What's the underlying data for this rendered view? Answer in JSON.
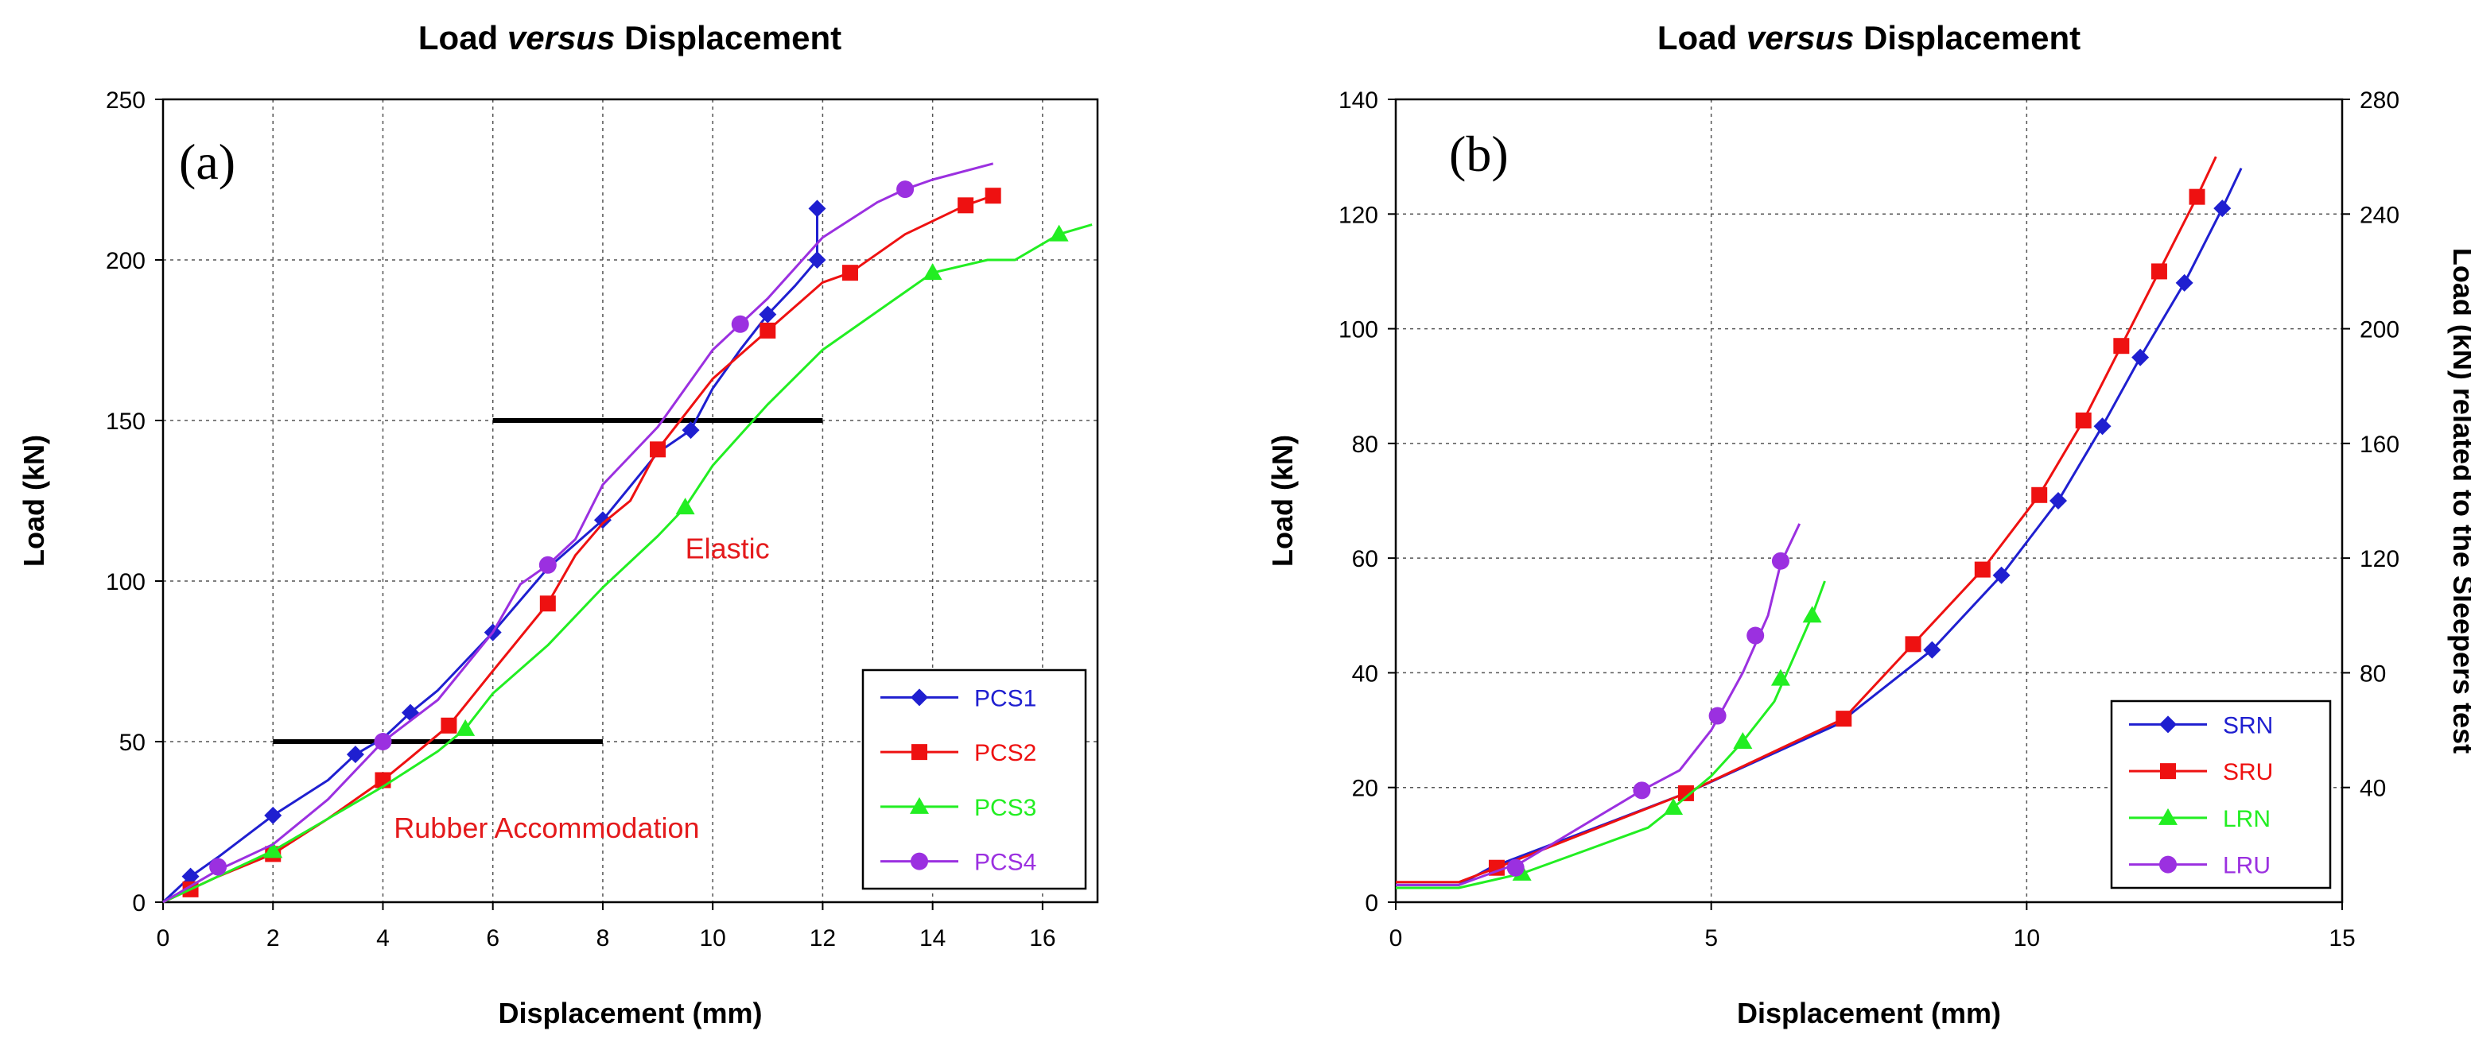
{
  "chart_data": [
    {
      "type": "line",
      "panel_label": "(a)",
      "title_parts": [
        "Load ",
        "versus",
        " Displacement"
      ],
      "xlabel": "Displacement (mm)",
      "ylabel": "Load (kN)",
      "xlim": [
        0,
        17
      ],
      "ylim": [
        0,
        250
      ],
      "xticks": [
        0,
        2,
        4,
        6,
        8,
        10,
        12,
        14,
        16
      ],
      "yticks": [
        0,
        50,
        100,
        150,
        200,
        250
      ],
      "grid": true,
      "legend_position": "bottom-right",
      "annotations": [
        {
          "text": "Elastic",
          "x": 9.5,
          "y": 107,
          "color": "#e41a1c"
        },
        {
          "text": "Rubber Accommodation",
          "x": 4.2,
          "y": 20,
          "color": "#e41a1c"
        }
      ],
      "reference_lines": [
        {
          "x": [
            2,
            8
          ],
          "y": [
            50,
            50
          ]
        },
        {
          "x": [
            6,
            12
          ],
          "y": [
            150,
            150
          ]
        }
      ],
      "series": [
        {
          "name": "PCS1",
          "color": "#1f1fd0",
          "marker": "diamond",
          "line": [
            [
              0,
              0
            ],
            [
              0.5,
              8
            ],
            [
              1,
              14
            ],
            [
              2,
              27
            ],
            [
              3,
              38
            ],
            [
              3.5,
              46
            ],
            [
              4,
              51
            ],
            [
              4.5,
              59
            ],
            [
              5,
              66
            ],
            [
              6,
              84
            ],
            [
              7,
              104
            ],
            [
              8,
              119
            ],
            [
              9,
              140
            ],
            [
              9.6,
              147
            ],
            [
              10,
              160
            ],
            [
              10.5,
              172
            ],
            [
              11,
              183
            ],
            [
              11.5,
              192
            ],
            [
              11.9,
              200
            ],
            [
              11.9,
              216
            ]
          ],
          "markers": [
            [
              0.5,
              8
            ],
            [
              2,
              27
            ],
            [
              3.5,
              46
            ],
            [
              4.5,
              59
            ],
            [
              6,
              84
            ],
            [
              8,
              119
            ],
            [
              9.6,
              147
            ],
            [
              11,
              183
            ],
            [
              11.9,
              200
            ],
            [
              11.9,
              216
            ]
          ]
        },
        {
          "name": "PCS2",
          "color": "#ee1111",
          "marker": "square",
          "line": [
            [
              0,
              0
            ],
            [
              0.5,
              4
            ],
            [
              1,
              8
            ],
            [
              2,
              15
            ],
            [
              3,
              26
            ],
            [
              4,
              38
            ],
            [
              4.5,
              45
            ],
            [
              5.2,
              55
            ],
            [
              6,
              72
            ],
            [
              7,
              93
            ],
            [
              7.5,
              108
            ],
            [
              8,
              118
            ],
            [
              8.5,
              125
            ],
            [
              9,
              141
            ],
            [
              10,
              163
            ],
            [
              11,
              178
            ],
            [
              12,
              193
            ],
            [
              12.5,
              196
            ],
            [
              13.5,
              208
            ],
            [
              14.6,
              217
            ],
            [
              15.1,
              220
            ]
          ],
          "markers": [
            [
              0.5,
              4
            ],
            [
              2,
              15
            ],
            [
              4,
              38
            ],
            [
              5.2,
              55
            ],
            [
              7,
              93
            ],
            [
              9,
              141
            ],
            [
              11,
              178
            ],
            [
              12.5,
              196
            ],
            [
              14.6,
              217
            ],
            [
              15.1,
              220
            ]
          ]
        },
        {
          "name": "PCS3",
          "color": "#22ee22",
          "marker": "triangle",
          "line": [
            [
              0,
              0
            ],
            [
              1,
              8
            ],
            [
              2,
              16
            ],
            [
              3,
              26
            ],
            [
              4,
              36
            ],
            [
              5,
              47
            ],
            [
              5.5,
              54
            ],
            [
              6,
              65
            ],
            [
              7,
              80
            ],
            [
              8,
              98
            ],
            [
              9,
              114
            ],
            [
              9.5,
              123
            ],
            [
              10,
              136
            ],
            [
              11,
              155
            ],
            [
              12,
              172
            ],
            [
              13,
              184
            ],
            [
              14,
              196
            ],
            [
              15,
              200
            ],
            [
              15.5,
              200
            ],
            [
              16.3,
              208
            ],
            [
              16.9,
              211
            ]
          ],
          "markers": [
            [
              2,
              16
            ],
            [
              5.5,
              54
            ],
            [
              9.5,
              123
            ],
            [
              14,
              196
            ],
            [
              16.3,
              208
            ]
          ]
        },
        {
          "name": "PCS4",
          "color": "#9b30e0",
          "marker": "circle",
          "line": [
            [
              0,
              0
            ],
            [
              1,
              10
            ],
            [
              2,
              18
            ],
            [
              3,
              32
            ],
            [
              4,
              50
            ],
            [
              5,
              63
            ],
            [
              6,
              84
            ],
            [
              6.5,
              99
            ],
            [
              7,
              105
            ],
            [
              7.5,
              113
            ],
            [
              8,
              130
            ],
            [
              9,
              148
            ],
            [
              10,
              172
            ],
            [
              10.5,
              180
            ],
            [
              11,
              188
            ],
            [
              12,
              207
            ],
            [
              13,
              218
            ],
            [
              13.5,
              222
            ],
            [
              14,
              225
            ],
            [
              15.1,
              230
            ]
          ],
          "markers": [
            [
              1,
              11
            ],
            [
              4,
              50
            ],
            [
              7,
              105
            ],
            [
              10.5,
              180
            ],
            [
              13.5,
              222
            ]
          ]
        }
      ]
    },
    {
      "type": "line",
      "panel_label": "(b)",
      "title_parts": [
        "Load ",
        "versus",
        " Displacement"
      ],
      "xlabel": "Displacement (mm)",
      "ylabel": "Load (kN)",
      "y2label": "Load (kN) related to the Sleepers test",
      "xlim": [
        0,
        15
      ],
      "ylim": [
        0,
        140
      ],
      "y2lim": [
        0,
        280
      ],
      "xticks": [
        0,
        5,
        10,
        15
      ],
      "yticks": [
        0,
        20,
        40,
        60,
        80,
        100,
        120,
        140
      ],
      "y2ticks": [
        40,
        80,
        120,
        160,
        200,
        240,
        280
      ],
      "grid": true,
      "legend_position": "bottom-right",
      "series": [
        {
          "name": "SRN",
          "color": "#1f1fd0",
          "marker": "diamond",
          "line": [
            [
              0,
              3
            ],
            [
              1,
              3
            ],
            [
              1.5,
              6
            ],
            [
              4.6,
              19
            ],
            [
              7,
              31
            ],
            [
              8.5,
              44
            ],
            [
              9.6,
              57
            ],
            [
              10.5,
              70
            ],
            [
              11.2,
              83
            ],
            [
              11.8,
              95
            ],
            [
              12.5,
              108
            ],
            [
              13.1,
              121
            ],
            [
              13.4,
              128
            ]
          ],
          "markers": [
            [
              8.5,
              44
            ],
            [
              9.6,
              57
            ],
            [
              10.5,
              70
            ],
            [
              11.2,
              83
            ],
            [
              11.8,
              95
            ],
            [
              12.5,
              108
            ],
            [
              13.1,
              121
            ]
          ]
        },
        {
          "name": "SRU",
          "color": "#ee1111",
          "marker": "square",
          "line": [
            [
              0,
              3.5
            ],
            [
              1,
              3.5
            ],
            [
              1.6,
              6
            ],
            [
              4.6,
              19
            ],
            [
              7.1,
              32
            ],
            [
              8.2,
              45
            ],
            [
              9.3,
              58
            ],
            [
              10.2,
              71
            ],
            [
              10.9,
              84
            ],
            [
              11.5,
              97
            ],
            [
              12.1,
              110
            ],
            [
              12.7,
              123
            ],
            [
              13,
              130
            ]
          ],
          "markers": [
            [
              1.6,
              6
            ],
            [
              4.6,
              19
            ],
            [
              7.1,
              32
            ],
            [
              8.2,
              45
            ],
            [
              9.3,
              58
            ],
            [
              10.2,
              71
            ],
            [
              10.9,
              84
            ],
            [
              11.5,
              97
            ],
            [
              12.1,
              110
            ],
            [
              12.7,
              123
            ]
          ]
        },
        {
          "name": "LRN",
          "color": "#22ee22",
          "marker": "triangle",
          "line": [
            [
              0,
              2.5
            ],
            [
              1,
              2.5
            ],
            [
              2,
              5
            ],
            [
              3,
              9
            ],
            [
              4,
              13
            ],
            [
              4.4,
              16.5
            ],
            [
              5,
              22
            ],
            [
              5.5,
              28
            ],
            [
              6,
              35
            ],
            [
              6.6,
              50
            ],
            [
              6.8,
              56
            ]
          ],
          "markers": [
            [
              2,
              5
            ],
            [
              4.4,
              16.5
            ],
            [
              5.5,
              28
            ],
            [
              6.1,
              39
            ],
            [
              6.6,
              50
            ]
          ]
        },
        {
          "name": "LRU",
          "color": "#9b30e0",
          "marker": "circle",
          "line": [
            [
              0,
              3
            ],
            [
              1,
              3
            ],
            [
              1.5,
              5
            ],
            [
              2,
              7
            ],
            [
              3.9,
              19.5
            ],
            [
              4.5,
              23
            ],
            [
              5,
              30
            ],
            [
              5.5,
              40
            ],
            [
              5.9,
              50
            ],
            [
              6.1,
              59
            ],
            [
              6.4,
              66
            ]
          ],
          "markers": [
            [
              1.9,
              6
            ],
            [
              3.9,
              19.5
            ],
            [
              5.1,
              32.5
            ],
            [
              5.7,
              46.5
            ],
            [
              6.1,
              59.5
            ]
          ]
        }
      ]
    }
  ]
}
